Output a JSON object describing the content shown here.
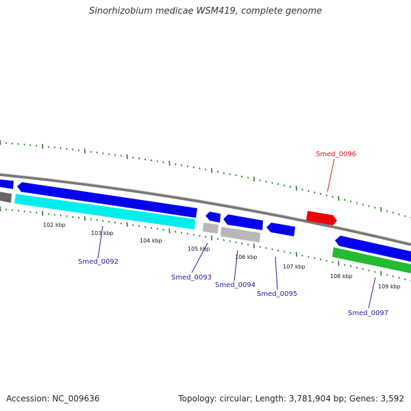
{
  "title": "Sinorhizobium medicae WSM419, complete genome",
  "accession": "Accession: NC_009636",
  "summary": "Topology: circular; Length: 3,781,904 bp; Genes: 3,592",
  "scale_labels": [
    "102 kbp",
    "103 kbp",
    "104 kbp",
    "105 kbp",
    "106 kbp",
    "107 kbp",
    "108 kbp",
    "109 kbp"
  ],
  "gene_labels": [
    "Smed_0092",
    "Smed_0093",
    "Smed_0094",
    "Smed_0095",
    "Smed_0096",
    "Smed_0097"
  ],
  "colors": {
    "cds_forward": "#0000ee",
    "highlight": "#ee0000",
    "cyan": "#00eeee",
    "green": "#22bb33",
    "grey": "#b8b8b8",
    "dark_grey": "#555555",
    "backbone": "#777777",
    "tick": "#227722",
    "gene_label": "#1a1aa8",
    "gene_label_red": "#dd1111"
  }
}
